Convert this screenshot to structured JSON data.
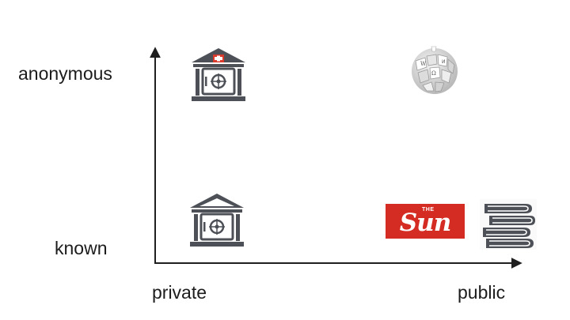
{
  "axis": {
    "y_top_label": "anonymous",
    "y_bottom_label": "known",
    "x_left_label": "private",
    "x_right_label": "public"
  },
  "icons": {
    "swiss_bank": "swiss-bank-vault-icon",
    "bank": "bank-vault-icon",
    "wikipedia": "wikipedia-globe-icon",
    "books": "books-stack-icon"
  },
  "sun_logo": {
    "the": "THE",
    "word": "Sun"
  },
  "colors": {
    "axis": "#1f1f1f",
    "bank": "#4d5157",
    "swiss_red": "#d93a2b",
    "sun_red": "#d42b22",
    "wiki_gray": "#c9c9c9"
  }
}
